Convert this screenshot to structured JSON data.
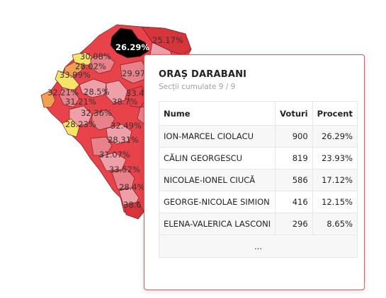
{
  "map": {
    "labels": [
      {
        "text": "26.29%",
        "color": "light"
      },
      {
        "text": "25.17%"
      },
      {
        "text": "30.08%"
      },
      {
        "text": "28.02%"
      },
      {
        "text": "33.99%"
      },
      {
        "text": "29.97"
      },
      {
        "text": "32.21%"
      },
      {
        "text": "28.5%"
      },
      {
        "text": "33.4"
      },
      {
        "text": "31.21%"
      },
      {
        "text": "38.7%"
      },
      {
        "text": "32.36%"
      },
      {
        "text": "28.23%"
      },
      {
        "text": "32.49%"
      },
      {
        "text": "28.31%"
      },
      {
        "text": "31.07%"
      },
      {
        "text": "33.52%"
      },
      {
        "text": "28.4%"
      },
      {
        "text": "38.6"
      }
    ],
    "colors": {
      "red": "#e8434b",
      "dark_red": "#d8343c",
      "pink": "#e9818a",
      "light_pink": "#ef9fa7",
      "orange": "#f0a050",
      "yellow": "#f6e46a",
      "selected": "#000000",
      "border": "#7a1f25"
    }
  },
  "tooltip": {
    "title": "ORAȘ DARABANI",
    "subtitle": "Secții cumulate 9 / 9",
    "columns": {
      "name": "Nume",
      "votes": "Voturi",
      "percent": "Procent"
    },
    "rows": [
      {
        "name": "ION-MARCEL CIOLACU",
        "votes": "900",
        "percent": "26.29%"
      },
      {
        "name": "CĂLIN GEORGESCU",
        "votes": "819",
        "percent": "23.93%"
      },
      {
        "name": "NICOLAE-IONEL CIUCĂ",
        "votes": "586",
        "percent": "17.12%"
      },
      {
        "name": "GEORGE-NICOLAE SIMION",
        "votes": "416",
        "percent": "12.15%"
      },
      {
        "name": "ELENA-VALERICA LASCONI",
        "votes": "296",
        "percent": "8.65%"
      }
    ],
    "more": "..."
  }
}
